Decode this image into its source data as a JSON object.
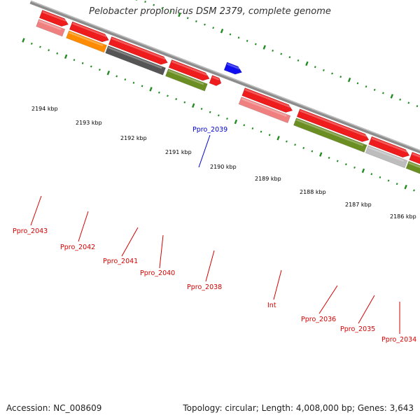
{
  "title": "Pelobacter propionicus DSM 2379, complete genome",
  "footer": {
    "accession": "Accession: NC_008609",
    "summary": "Topology: circular; Length: 4,008,000 bp; Genes: 3,643"
  },
  "colors": {
    "backbone": "#8c8c8c",
    "ticks": "#228b22",
    "red": "#ee1c1c",
    "pink": "#f08080",
    "orange": "#ff8c00",
    "darkgray": "#555555",
    "olive": "#6b8e23",
    "lightgray": "#bdbdbd",
    "blue": "#1010ee",
    "label_red": "#d40000",
    "label_blue": "#0000cc"
  },
  "kbp_labels": [
    "2194 kbp",
    "2193 kbp",
    "2192 kbp",
    "2191 kbp",
    "2190 kbp",
    "2189 kbp",
    "2188 kbp",
    "2187 kbp",
    "2186 kbp"
  ],
  "genes": [
    {
      "label": "Ppro_2043",
      "color": "label_red"
    },
    {
      "label": "Ppro_2042",
      "color": "label_red"
    },
    {
      "label": "Ppro_2041",
      "color": "label_red"
    },
    {
      "label": "Ppro_2040",
      "color": "label_red"
    },
    {
      "label": "Ppro_2039",
      "color": "label_blue"
    },
    {
      "label": "Ppro_2038",
      "color": "label_red"
    },
    {
      "label": "Int",
      "color": "label_red"
    },
    {
      "label": "Ppro_2036",
      "color": "label_red"
    },
    {
      "label": "Ppro_2035",
      "color": "label_red"
    },
    {
      "label": "Ppro_2034",
      "color": "label_red"
    }
  ]
}
